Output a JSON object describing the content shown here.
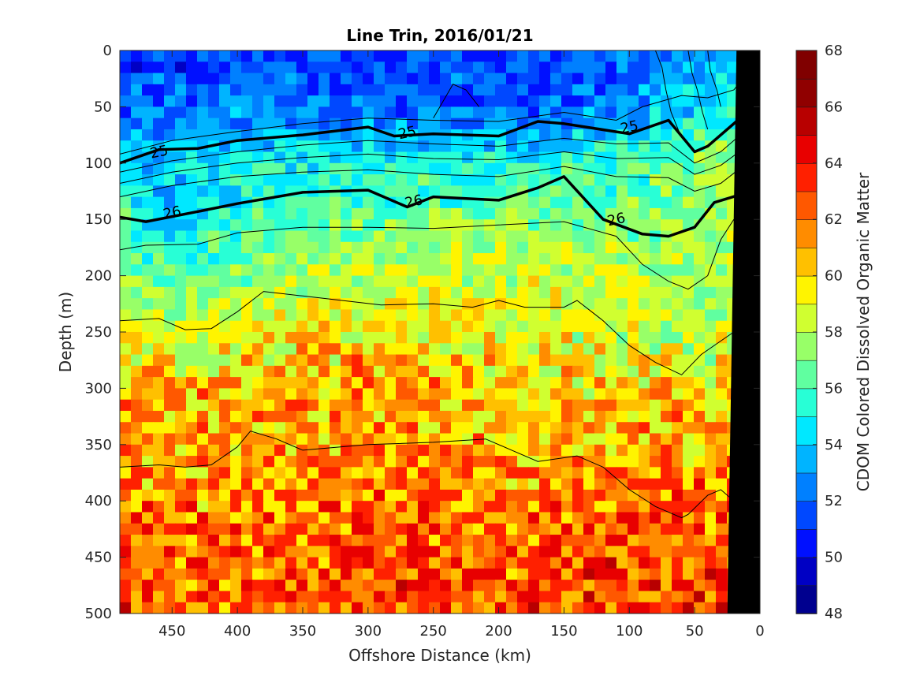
{
  "chart_data": {
    "type": "heatmap",
    "title": "Line Trin, 2016/01/21",
    "xlabel": "Offshore Distance (km)",
    "ylabel": "Depth (m)",
    "xlim": [
      490,
      0
    ],
    "ylim": [
      0,
      500
    ],
    "x_reversed": true,
    "y_reversed": true,
    "xticks": [
      450,
      400,
      350,
      300,
      250,
      200,
      150,
      100,
      50,
      0
    ],
    "yticks": [
      0,
      50,
      100,
      150,
      200,
      250,
      300,
      350,
      400,
      450,
      500
    ],
    "colorbar": {
      "label": "CDOM Colored Dissolved Organic Matter",
      "range": [
        48,
        68
      ],
      "ticks": [
        48,
        50,
        52,
        54,
        56,
        58,
        60,
        62,
        64,
        66,
        68
      ],
      "levels": 20,
      "colormap": [
        "#00008f",
        "#0000c4",
        "#0010ff",
        "#0048ff",
        "#0080ff",
        "#00b4ff",
        "#00e8ff",
        "#28ffd6",
        "#60ffa0",
        "#98ff68",
        "#d0ff30",
        "#fff400",
        "#ffc000",
        "#ff8c00",
        "#ff5800",
        "#ff2000",
        "#e80000",
        "#b80000",
        "#900000",
        "#800000"
      ]
    },
    "depth_profile_x": [
      490,
      450,
      400,
      350,
      300,
      250,
      200,
      150,
      100,
      50,
      20
    ],
    "cdom_layers": [
      {
        "depth": 0,
        "values": [
          50.5,
          51,
          51,
          51.5,
          51,
          51.5,
          51,
          51.5,
          52,
          53,
          54
        ]
      },
      {
        "depth": 50,
        "values": [
          52,
          52,
          52.5,
          52.5,
          52,
          52,
          51.5,
          52,
          53,
          54,
          55
        ]
      },
      {
        "depth": 100,
        "values": [
          54,
          54,
          54.5,
          55,
          55,
          55,
          55,
          55.5,
          56,
          57,
          58
        ]
      },
      {
        "depth": 150,
        "values": [
          56,
          54.5,
          55.5,
          56.5,
          57,
          57,
          57,
          57,
          57,
          57.5,
          58
        ]
      },
      {
        "depth": 200,
        "values": [
          57.5,
          56,
          57,
          58,
          58,
          58.5,
          58.5,
          58.5,
          58.5,
          58,
          58
        ]
      },
      {
        "depth": 250,
        "values": [
          59,
          58.5,
          59,
          59.5,
          60,
          59.5,
          59,
          59,
          58.5,
          58,
          58
        ]
      },
      {
        "depth": 300,
        "values": [
          60.5,
          60.5,
          60.5,
          61,
          61,
          61,
          60.5,
          60.5,
          60,
          60,
          59.5
        ]
      },
      {
        "depth": 350,
        "values": [
          61,
          61,
          61,
          61,
          61.5,
          61,
          61,
          61,
          61,
          61,
          61
        ]
      },
      {
        "depth": 400,
        "values": [
          62,
          61.5,
          61.5,
          61.5,
          62,
          62,
          61.5,
          61.5,
          62,
          62,
          62
        ]
      },
      {
        "depth": 450,
        "values": [
          62.5,
          62,
          62,
          62,
          62.5,
          62.5,
          62,
          62.5,
          62.5,
          62.5,
          62.5
        ]
      },
      {
        "depth": 500,
        "values": [
          63,
          62.5,
          62.5,
          62.5,
          63,
          63,
          62.5,
          63,
          63,
          63,
          63
        ]
      }
    ],
    "contour_labels": [
      {
        "text": "25",
        "x": 460,
        "y": 90
      },
      {
        "text": "25",
        "x": 270,
        "y": 73
      },
      {
        "text": "25",
        "x": 100,
        "y": 68
      },
      {
        "text": "26",
        "x": 450,
        "y": 144
      },
      {
        "text": "26",
        "x": 265,
        "y": 134
      },
      {
        "text": "26",
        "x": 110,
        "y": 150
      }
    ],
    "isopycnals_bold": [
      {
        "name": "25",
        "points": [
          [
            490,
            100
          ],
          [
            460,
            88
          ],
          [
            430,
            87
          ],
          [
            400,
            80
          ],
          [
            350,
            75
          ],
          [
            300,
            68
          ],
          [
            280,
            76
          ],
          [
            250,
            74
          ],
          [
            200,
            76
          ],
          [
            170,
            63
          ],
          [
            150,
            65
          ],
          [
            100,
            74
          ],
          [
            70,
            62
          ],
          [
            50,
            90
          ],
          [
            40,
            85
          ],
          [
            10,
            55
          ]
        ]
      },
      {
        "name": "26",
        "points": [
          [
            490,
            148
          ],
          [
            470,
            152
          ],
          [
            430,
            143
          ],
          [
            400,
            136
          ],
          [
            350,
            126
          ],
          [
            300,
            124
          ],
          [
            270,
            139
          ],
          [
            250,
            130
          ],
          [
            200,
            133
          ],
          [
            170,
            122
          ],
          [
            150,
            112
          ],
          [
            120,
            150
          ],
          [
            90,
            163
          ],
          [
            70,
            165
          ],
          [
            50,
            157
          ],
          [
            35,
            135
          ],
          [
            15,
            128
          ],
          [
            10,
            138
          ]
        ]
      }
    ],
    "isopycnals_thin": [
      {
        "points": [
          [
            490,
            92
          ],
          [
            450,
            80
          ],
          [
            400,
            72
          ],
          [
            350,
            65
          ],
          [
            300,
            60
          ],
          [
            250,
            62
          ],
          [
            200,
            63
          ],
          [
            150,
            55
          ],
          [
            110,
            62
          ],
          [
            90,
            50
          ],
          [
            60,
            40
          ],
          [
            40,
            42
          ],
          [
            20,
            35
          ],
          [
            10,
            20
          ]
        ]
      },
      {
        "points": [
          [
            490,
            108
          ],
          [
            450,
            98
          ],
          [
            400,
            90
          ],
          [
            350,
            84
          ],
          [
            300,
            80
          ],
          [
            250,
            83
          ],
          [
            200,
            85
          ],
          [
            150,
            78
          ],
          [
            110,
            83
          ],
          [
            70,
            82
          ],
          [
            50,
            100
          ],
          [
            30,
            90
          ],
          [
            10,
            70
          ]
        ]
      },
      {
        "points": [
          [
            490,
            118
          ],
          [
            450,
            108
          ],
          [
            400,
            100
          ],
          [
            350,
            95
          ],
          [
            300,
            92
          ],
          [
            250,
            96
          ],
          [
            200,
            97
          ],
          [
            150,
            90
          ],
          [
            110,
            96
          ],
          [
            70,
            95
          ],
          [
            50,
            110
          ],
          [
            30,
            102
          ],
          [
            10,
            85
          ]
        ]
      },
      {
        "points": [
          [
            490,
            130
          ],
          [
            450,
            120
          ],
          [
            400,
            112
          ],
          [
            350,
            108
          ],
          [
            300,
            106
          ],
          [
            250,
            110
          ],
          [
            200,
            112
          ],
          [
            150,
            103
          ],
          [
            110,
            112
          ],
          [
            70,
            113
          ],
          [
            50,
            125
          ],
          [
            30,
            118
          ],
          [
            10,
            100
          ]
        ]
      },
      {
        "points": [
          [
            490,
            177
          ],
          [
            470,
            173
          ],
          [
            430,
            172
          ],
          [
            400,
            162
          ],
          [
            350,
            157
          ],
          [
            300,
            157
          ],
          [
            250,
            158
          ],
          [
            200,
            155
          ],
          [
            150,
            152
          ],
          [
            110,
            165
          ],
          [
            90,
            190
          ],
          [
            70,
            205
          ],
          [
            55,
            212
          ],
          [
            40,
            200
          ],
          [
            30,
            168
          ],
          [
            20,
            150
          ]
        ]
      },
      {
        "points": [
          [
            490,
            240
          ],
          [
            460,
            238
          ],
          [
            440,
            248
          ],
          [
            420,
            247
          ],
          [
            400,
            232
          ],
          [
            380,
            214
          ],
          [
            350,
            218
          ],
          [
            320,
            222
          ],
          [
            290,
            226
          ],
          [
            250,
            225
          ],
          [
            220,
            228
          ],
          [
            200,
            222
          ],
          [
            180,
            228
          ],
          [
            150,
            228
          ],
          [
            140,
            222
          ],
          [
            120,
            240
          ],
          [
            100,
            262
          ],
          [
            80,
            277
          ],
          [
            60,
            288
          ],
          [
            45,
            270
          ],
          [
            30,
            258
          ],
          [
            20,
            250
          ]
        ]
      },
      {
        "points": [
          [
            490,
            370
          ],
          [
            460,
            368
          ],
          [
            440,
            370
          ],
          [
            420,
            368
          ],
          [
            400,
            352
          ],
          [
            390,
            338
          ],
          [
            370,
            345
          ],
          [
            350,
            355
          ],
          [
            300,
            350
          ],
          [
            250,
            348
          ],
          [
            210,
            345
          ],
          [
            190,
            355
          ],
          [
            170,
            365
          ],
          [
            140,
            360
          ],
          [
            120,
            370
          ],
          [
            100,
            390
          ],
          [
            80,
            405
          ],
          [
            60,
            415
          ],
          [
            55,
            412
          ],
          [
            40,
            395
          ],
          [
            30,
            390
          ],
          [
            20,
            400
          ]
        ]
      },
      {
        "points": [
          [
            80,
            0
          ],
          [
            75,
            15
          ],
          [
            72,
            35
          ],
          [
            68,
            55
          ],
          [
            62,
            72
          ]
        ]
      },
      {
        "points": [
          [
            55,
            0
          ],
          [
            52,
            20
          ],
          [
            48,
            35
          ],
          [
            44,
            55
          ],
          [
            40,
            70
          ]
        ]
      },
      {
        "points": [
          [
            40,
            0
          ],
          [
            38,
            18
          ],
          [
            33,
            35
          ],
          [
            30,
            50
          ]
        ]
      },
      {
        "points": [
          [
            250,
            60
          ],
          [
            240,
            40
          ],
          [
            235,
            30
          ],
          [
            225,
            35
          ],
          [
            215,
            50
          ]
        ]
      }
    ],
    "shelf_wedge": [
      [
        18,
        0
      ],
      [
        0,
        0
      ],
      [
        0,
        500
      ],
      [
        25,
        500
      ]
    ]
  }
}
